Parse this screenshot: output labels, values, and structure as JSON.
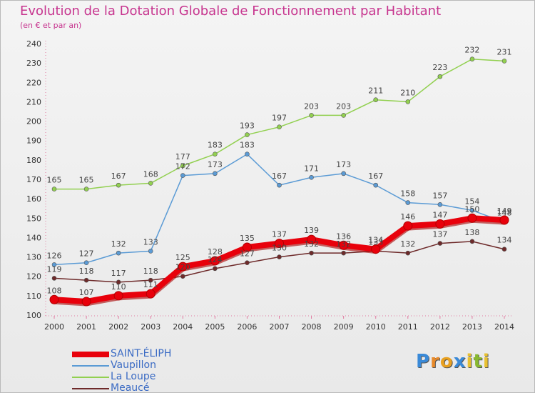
{
  "title": "Evolution de la Dotation Globale de Fonctionnement par Habitant",
  "subtitle": "(en € et par an)",
  "logo": {
    "letters": [
      {
        "char": "P",
        "color": "#3a8ad8"
      },
      {
        "char": "r",
        "color": "#e88a2a"
      },
      {
        "char": "o",
        "color": "#e8a020"
      },
      {
        "char": "x",
        "color": "#3a8ad8"
      },
      {
        "char": "i",
        "color": "#e8c030"
      },
      {
        "char": "t",
        "color": "#88b830"
      },
      {
        "char": "i",
        "color": "#e8c030"
      }
    ]
  },
  "chart_data": {
    "type": "line",
    "x": [
      "2000",
      "2001",
      "2002",
      "2003",
      "2004",
      "2005",
      "2006",
      "2007",
      "2008",
      "2009",
      "2010",
      "2011",
      "2012",
      "2013",
      "2014"
    ],
    "ylim": [
      100,
      240
    ],
    "yticks": [
      100,
      110,
      120,
      130,
      140,
      150,
      160,
      170,
      180,
      190,
      200,
      210,
      220,
      230,
      240
    ],
    "grid": false,
    "legend_position": "bottom-left",
    "series": [
      {
        "name": "SAINT-ÉLIPH",
        "color": "#e8000b",
        "values": [
          108,
          107,
          110,
          111,
          125,
          128,
          135,
          137,
          139,
          136,
          134,
          146,
          147,
          150,
          149
        ]
      },
      {
        "name": "Vaupillon",
        "color": "#5b9bd5",
        "values": [
          126,
          127,
          132,
          133,
          172,
          173,
          183,
          167,
          171,
          173,
          167,
          158,
          157,
          154,
          148
        ]
      },
      {
        "name": "La Loupe",
        "color": "#92d050",
        "values": [
          165,
          165,
          167,
          168,
          177,
          183,
          193,
          197,
          203,
          203,
          211,
          210,
          223,
          232,
          231
        ]
      },
      {
        "name": "Meaucé",
        "color": "#6e2a2a",
        "values": [
          119,
          118,
          117,
          118,
          120,
          124,
          127,
          130,
          132,
          132,
          133,
          132,
          137,
          138,
          134
        ]
      }
    ]
  }
}
